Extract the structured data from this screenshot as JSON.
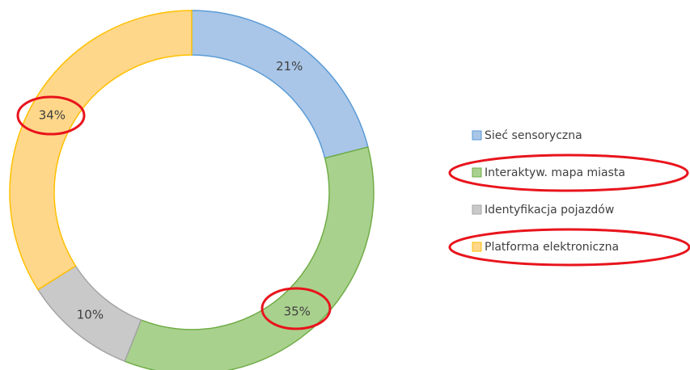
{
  "chart_data": {
    "type": "donut",
    "categories": [
      "Sieć sensoryczna",
      "Interaktyw. mapa miasta",
      "Identyfikacja pojazdów",
      "Platforma elektroniczna"
    ],
    "values": [
      21,
      35,
      10,
      34
    ],
    "value_labels": [
      "21%",
      "35%",
      "10%",
      "34%"
    ],
    "colors": [
      "#a9c6e8",
      "#a9d18e",
      "#c9c9c9",
      "#ffd78a"
    ],
    "legend": "right"
  }
}
